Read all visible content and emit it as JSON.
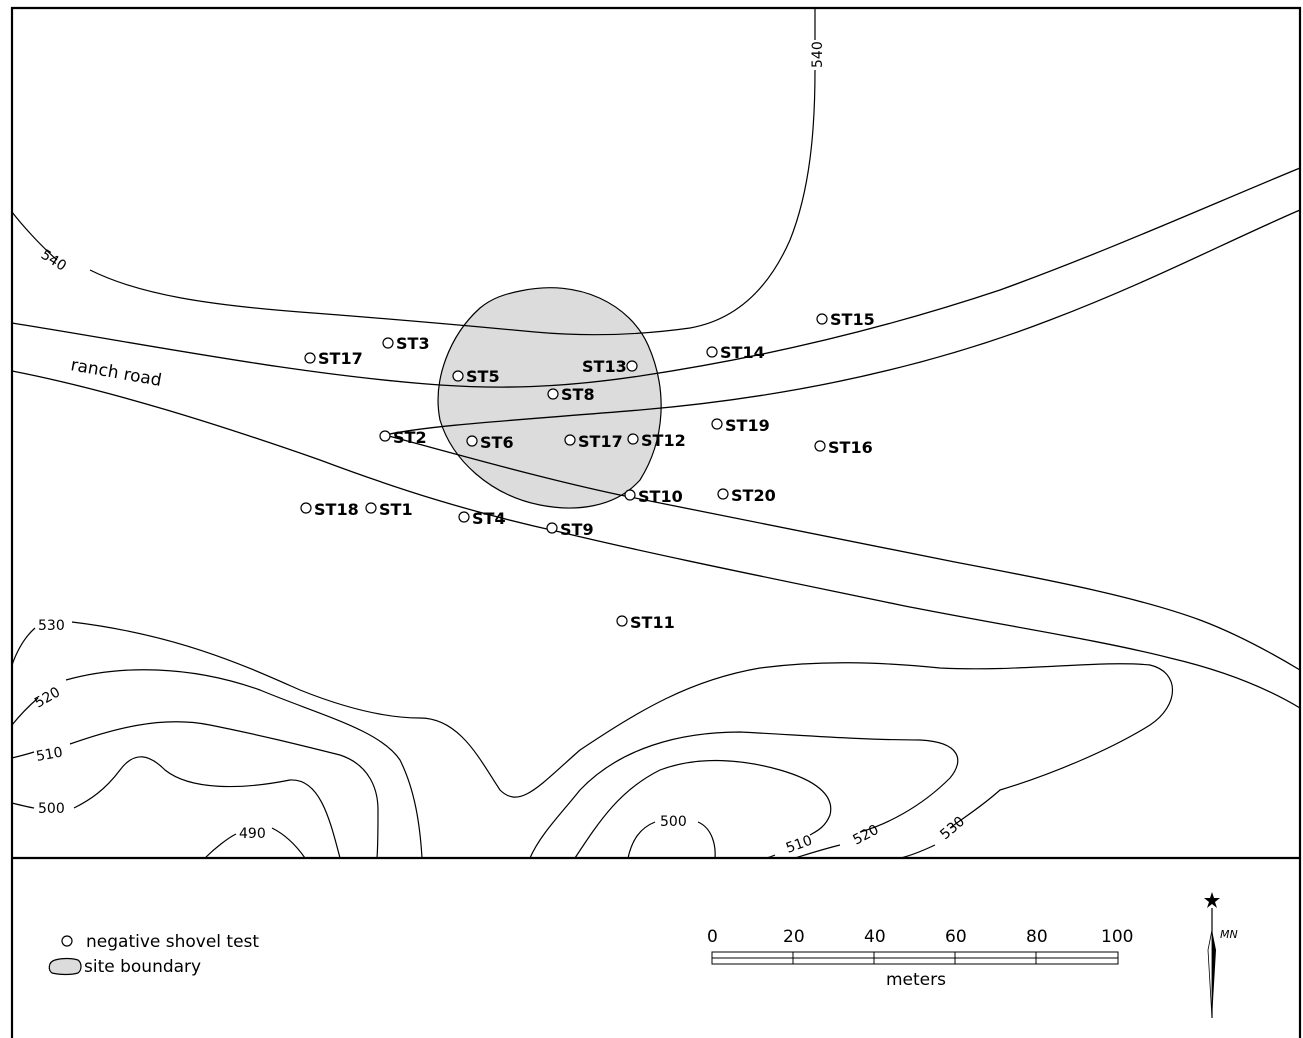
{
  "contour_labels": {
    "c540_top": "540",
    "c540_left": "540",
    "c530_left": "530",
    "c520_left": "520",
    "c510_left": "510",
    "c500_left": "500",
    "c490": "490",
    "c500_mid": "500",
    "c510_bottom": "510",
    "c520_bottom": "520",
    "c530_bottom": "530"
  },
  "road_label": "ranch road",
  "shovel_tests": [
    {
      "id": "ST17",
      "label": "ST17"
    },
    {
      "id": "ST3",
      "label": "ST3"
    },
    {
      "id": "ST5",
      "label": "ST5"
    },
    {
      "id": "ST13",
      "label": "ST13"
    },
    {
      "id": "ST8",
      "label": "ST8"
    },
    {
      "id": "ST14",
      "label": "ST14"
    },
    {
      "id": "ST15",
      "label": "ST15"
    },
    {
      "id": "ST2",
      "label": "ST2"
    },
    {
      "id": "ST6",
      "label": "ST6"
    },
    {
      "id": "ST17b",
      "label": "ST17"
    },
    {
      "id": "ST12",
      "label": "ST12"
    },
    {
      "id": "ST19",
      "label": "ST19"
    },
    {
      "id": "ST16",
      "label": "ST16"
    },
    {
      "id": "ST18",
      "label": "ST18"
    },
    {
      "id": "ST1",
      "label": "ST1"
    },
    {
      "id": "ST4",
      "label": "ST4"
    },
    {
      "id": "ST9",
      "label": "ST9"
    },
    {
      "id": "ST10",
      "label": "ST10"
    },
    {
      "id": "ST20",
      "label": "ST20"
    },
    {
      "id": "ST11",
      "label": "ST11"
    }
  ],
  "legend": {
    "negative_shovel_test": "negative shovel test",
    "site_boundary": "site boundary"
  },
  "scale_bar": {
    "ticks": [
      "0",
      "20",
      "40",
      "60",
      "80",
      "100"
    ],
    "unit": "meters"
  },
  "north_arrow": {
    "label": "MN"
  }
}
